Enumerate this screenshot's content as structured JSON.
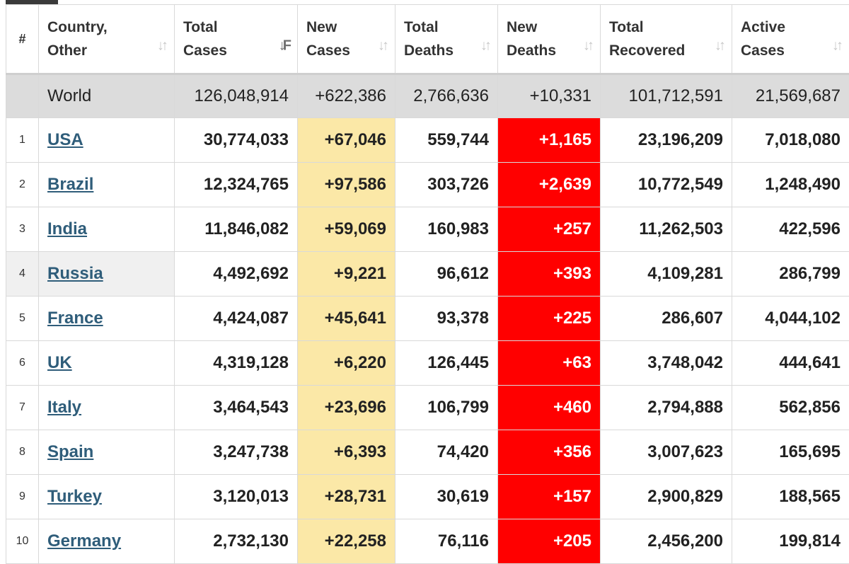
{
  "headers": {
    "rank": "#",
    "country": [
      "Country,",
      "Other"
    ],
    "total_cases": [
      "Total",
      "Cases"
    ],
    "new_cases": [
      "New",
      "Cases"
    ],
    "total_deaths": [
      "Total",
      "Deaths"
    ],
    "new_deaths": [
      "New",
      "Deaths"
    ],
    "total_recovered": [
      "Total",
      "Recovered"
    ],
    "active_cases": [
      "Active",
      "Cases"
    ]
  },
  "world": {
    "country": "World",
    "total_cases": "126,048,914",
    "new_cases": "+622,386",
    "total_deaths": "2,766,636",
    "new_deaths": "+10,331",
    "total_recovered": "101,712,591",
    "active_cases": "21,569,687"
  },
  "rows": [
    {
      "rank": "1",
      "country": "USA",
      "total_cases": "30,774,033",
      "new_cases": "+67,046",
      "total_deaths": "559,744",
      "new_deaths": "+1,165",
      "total_recovered": "23,196,209",
      "active_cases": "7,018,080"
    },
    {
      "rank": "2",
      "country": "Brazil",
      "total_cases": "12,324,765",
      "new_cases": "+97,586",
      "total_deaths": "303,726",
      "new_deaths": "+2,639",
      "total_recovered": "10,772,549",
      "active_cases": "1,248,490"
    },
    {
      "rank": "3",
      "country": "India",
      "total_cases": "11,846,082",
      "new_cases": "+59,069",
      "total_deaths": "160,983",
      "new_deaths": "+257",
      "total_recovered": "11,262,503",
      "active_cases": "422,596"
    },
    {
      "rank": "4",
      "country": "Russia",
      "total_cases": "4,492,692",
      "new_cases": "+9,221",
      "total_deaths": "96,612",
      "new_deaths": "+393",
      "total_recovered": "4,109,281",
      "active_cases": "286,799"
    },
    {
      "rank": "5",
      "country": "France",
      "total_cases": "4,424,087",
      "new_cases": "+45,641",
      "total_deaths": "93,378",
      "new_deaths": "+225",
      "total_recovered": "286,607",
      "active_cases": "4,044,102"
    },
    {
      "rank": "6",
      "country": "UK",
      "total_cases": "4,319,128",
      "new_cases": "+6,220",
      "total_deaths": "126,445",
      "new_deaths": "+63",
      "total_recovered": "3,748,042",
      "active_cases": "444,641"
    },
    {
      "rank": "7",
      "country": "Italy",
      "total_cases": "3,464,543",
      "new_cases": "+23,696",
      "total_deaths": "106,799",
      "new_deaths": "+460",
      "total_recovered": "2,794,888",
      "active_cases": "562,856"
    },
    {
      "rank": "8",
      "country": "Spain",
      "total_cases": "3,247,738",
      "new_cases": "+6,393",
      "total_deaths": "74,420",
      "new_deaths": "+356",
      "total_recovered": "3,007,623",
      "active_cases": "165,695"
    },
    {
      "rank": "9",
      "country": "Turkey",
      "total_cases": "3,120,013",
      "new_cases": "+28,731",
      "total_deaths": "30,619",
      "new_deaths": "+157",
      "total_recovered": "2,900,829",
      "active_cases": "188,565"
    },
    {
      "rank": "10",
      "country": "Germany",
      "total_cases": "2,732,130",
      "new_cases": "+22,258",
      "total_deaths": "76,116",
      "new_deaths": "+205",
      "total_recovered": "2,456,200",
      "active_cases": "199,814"
    }
  ],
  "colors": {
    "new_cases_bg": "#fbe8a7",
    "new_deaths_bg": "#ff0000",
    "world_row_bg": "#dcdcdc",
    "link": "#2f5d7a"
  },
  "icons": {
    "sort": "sort-arrows-icon",
    "sort_active": "sort-desc-icon"
  }
}
